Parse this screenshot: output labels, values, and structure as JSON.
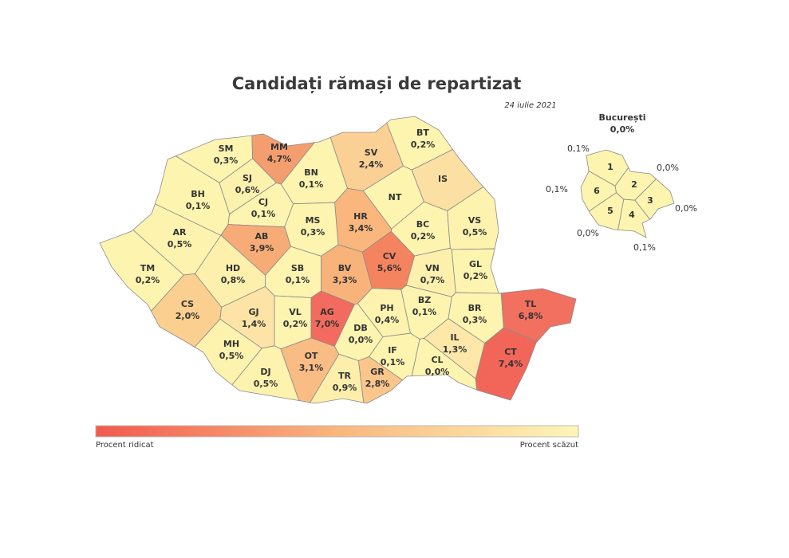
{
  "title": "Candidați rămași de repartizat",
  "date": "24 iulie 2021",
  "counties": [
    {
      "code": "SM",
      "label": "0,3%",
      "color": "#fdf4b0"
    },
    {
      "code": "MM",
      "label": "4,7%",
      "color": "#f49e70"
    },
    {
      "code": "BT",
      "label": "0,2%",
      "color": "#fdf4b0"
    },
    {
      "code": "SV",
      "label": "2,4%",
      "color": "#fbd095"
    },
    {
      "code": "IS",
      "label": "",
      "color": "#fce0a3"
    },
    {
      "code": "BN",
      "label": "0,1%",
      "color": "#fdf4b0"
    },
    {
      "code": "SJ",
      "label": "0,6%",
      "color": "#fdf1ae"
    },
    {
      "code": "BH",
      "label": "0,1%",
      "color": "#fdf4b0"
    },
    {
      "code": "CJ",
      "label": "0,1%",
      "color": "#fdf4b0"
    },
    {
      "code": "NT",
      "label": "",
      "color": "#fdf4b0"
    },
    {
      "code": "AR",
      "label": "0,5%",
      "color": "#fdf2ae"
    },
    {
      "code": "MS",
      "label": "0,3%",
      "color": "#fdf4b0"
    },
    {
      "code": "HR",
      "label": "3,4%",
      "color": "#f9b67d"
    },
    {
      "code": "BC",
      "label": "0,2%",
      "color": "#fdf4b0"
    },
    {
      "code": "VS",
      "label": "0,5%",
      "color": "#fdf2ae"
    },
    {
      "code": "AB",
      "label": "3,9%",
      "color": "#f7ab77"
    },
    {
      "code": "TM",
      "label": "0,2%",
      "color": "#fdf4b0"
    },
    {
      "code": "HD",
      "label": "0,8%",
      "color": "#fdf0ac"
    },
    {
      "code": "SB",
      "label": "0,1%",
      "color": "#fdf4b0"
    },
    {
      "code": "BV",
      "label": "3,3%",
      "color": "#f8b37b"
    },
    {
      "code": "CV",
      "label": "5,6%",
      "color": "#f4845f"
    },
    {
      "code": "VN",
      "label": "0,7%",
      "color": "#fdf0ac"
    },
    {
      "code": "GL",
      "label": "0,2%",
      "color": "#fdf4b0"
    },
    {
      "code": "CS",
      "label": "2,0%",
      "color": "#fbcf90"
    },
    {
      "code": "GJ",
      "label": "1,4%",
      "color": "#fde4a6"
    },
    {
      "code": "VL",
      "label": "0,2%",
      "color": "#fdf4b0"
    },
    {
      "code": "AG",
      "label": "7,0%",
      "color": "#f26b5e"
    },
    {
      "code": "PH",
      "label": "0,4%",
      "color": "#fdf3af"
    },
    {
      "code": "BZ",
      "label": "0,1%",
      "color": "#fdf4b0"
    },
    {
      "code": "BR",
      "label": "0,3%",
      "color": "#fdf4b0"
    },
    {
      "code": "TL",
      "label": "6,8%",
      "color": "#f2705f"
    },
    {
      "code": "DB",
      "label": "0,0%",
      "color": "#fdf4b0"
    },
    {
      "code": "MH",
      "label": "0,5%",
      "color": "#fdf2ae"
    },
    {
      "code": "OT",
      "label": "3,1%",
      "color": "#f9bc84"
    },
    {
      "code": "IF",
      "label": "0,1%",
      "color": "#fdf4b0"
    },
    {
      "code": "IL",
      "label": "1,3%",
      "color": "#fde8aa"
    },
    {
      "code": "CL",
      "label": "0,0%",
      "color": "#fdf4b0"
    },
    {
      "code": "CT",
      "label": "7,4%",
      "color": "#f2665a"
    },
    {
      "code": "DJ",
      "label": "0,5%",
      "color": "#fdf2ae"
    },
    {
      "code": "TR",
      "label": "0,9%",
      "color": "#fdefab"
    },
    {
      "code": "GR",
      "label": "2,8%",
      "color": "#fac68b"
    }
  ],
  "bucharest": {
    "title": "București",
    "label": "0,0%",
    "sectors": [
      {
        "name": "1",
        "label": "0,1%",
        "color": "#fdf4b0"
      },
      {
        "name": "2",
        "label": "0,0%",
        "color": "#fdf4b0"
      },
      {
        "name": "3",
        "label": "0,0%",
        "color": "#fdf4b0"
      },
      {
        "name": "4",
        "label": "0,1%",
        "color": "#fdf4b0"
      },
      {
        "name": "5",
        "label": "0,0%",
        "color": "#fdf4b0"
      },
      {
        "name": "6",
        "label": "0,1%",
        "color": "#fdf4b0"
      }
    ]
  },
  "legend": {
    "high": "Procent ridicat",
    "low": "Procent scăzut",
    "colors": [
      "#f2594f",
      "#f9b67d",
      "#fdf6b8"
    ]
  }
}
